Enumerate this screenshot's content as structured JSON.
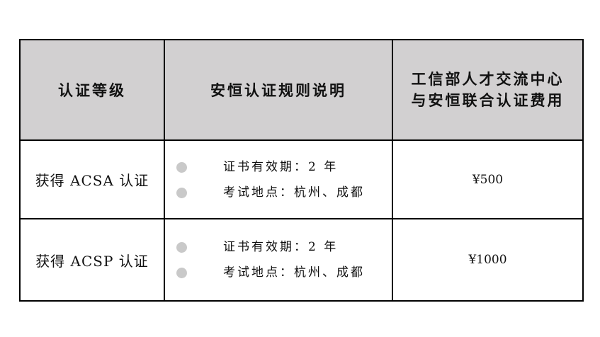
{
  "headers": {
    "level": "认证等级",
    "rules": "安恒认证规则说明",
    "fee_line1": "工信部人才交流中心",
    "fee_line2": "与安恒联合认证费用"
  },
  "rows": [
    {
      "level": "获得 ACSA 认证",
      "rules": [
        "证书有效期：2 年",
        "考试地点：杭州、成都"
      ],
      "fee": "¥500"
    },
    {
      "level": "获得 ACSP 认证",
      "rules": [
        "证书有效期：2 年",
        "考试地点：杭州、成都"
      ],
      "fee": "¥1000"
    }
  ],
  "colors": {
    "header_bg": "#d2d0d1",
    "bullet": "#c9c9c9"
  },
  "icons": {
    "bullet": "bullet-dot-icon"
  }
}
